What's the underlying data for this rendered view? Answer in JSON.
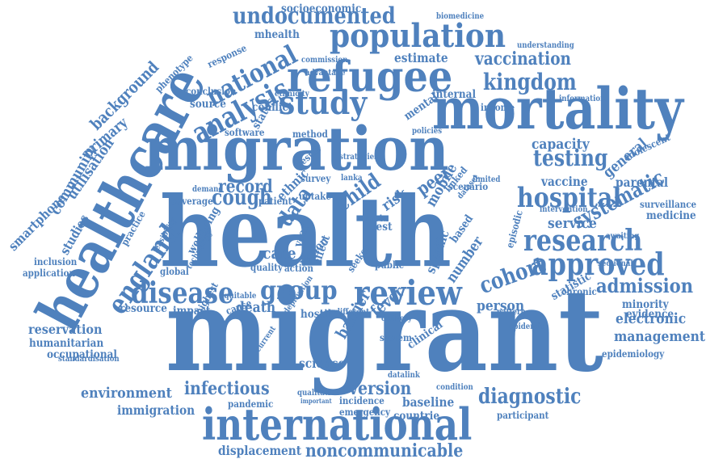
{
  "colors": {
    "word": "#4f81bd",
    "background": "#ffffff"
  },
  "words": [
    "migrant",
    "health",
    "healthcare",
    "migration",
    "mortality",
    "international",
    "refugee",
    "review",
    "study",
    "population",
    "research",
    "approved",
    "hospital",
    "analysis",
    "national",
    "undocumented",
    "vaccination",
    "kingdom",
    "disease",
    "group",
    "england",
    "diagnostic",
    "admission",
    "cohort",
    "testing",
    "capacity",
    "cough",
    "record",
    "service",
    "person",
    "care",
    "data",
    "child",
    "infectious",
    "environment",
    "version",
    "reservation",
    "management",
    "electronic",
    "evidence",
    "minority",
    "statistic",
    "systematic",
    "general",
    "vaccine",
    "medicine",
    "surveillance",
    "parental",
    "adolescent",
    "background",
    "primary",
    "utilisation",
    "community",
    "studies",
    "smartphone",
    "inclusion",
    "application",
    "global",
    "coverage",
    "resource",
    "impact",
    "death",
    "hostile",
    "fever",
    "barrier",
    "science",
    "baseline",
    "countrie",
    "incidence",
    "emergency",
    "pandemic",
    "immigration",
    "displacement",
    "noncommunicable",
    "participant",
    "humanitarian",
    "occupational",
    "standardisation",
    "epidemiology",
    "socioeconomic",
    "mhealth",
    "biomedicine",
    "understanding",
    "estimate",
    "internal",
    "mental",
    "conflict",
    "ethnicity",
    "response",
    "source",
    "conclusion",
    "status",
    "method",
    "software",
    "income",
    "information",
    "policies",
    "chronic",
    "episodic",
    "wellbeing",
    "technology",
    "practice",
    "feasibility",
    "peer",
    "risk",
    "test",
    "meta",
    "mobile",
    "ethnic",
    "uptake",
    "survey",
    "lanka",
    "sectional",
    "awaiting",
    "phenotype",
    "pattern",
    "epidemic",
    "datalink",
    "condition",
    "qualitative",
    "important",
    "system",
    "clinical",
    "year",
    "region",
    "quality",
    "cause",
    "action",
    "effect",
    "public",
    "seeker",
    "number",
    "specific",
    "based",
    "linked",
    "scenario",
    "dataset",
    "limited",
    "result",
    "patient",
    "strategies",
    "deprivation",
    "current",
    "different",
    "delivery",
    "highest",
    "equitable",
    "demand",
    "commission",
    "advantage",
    "intervention"
  ]
}
